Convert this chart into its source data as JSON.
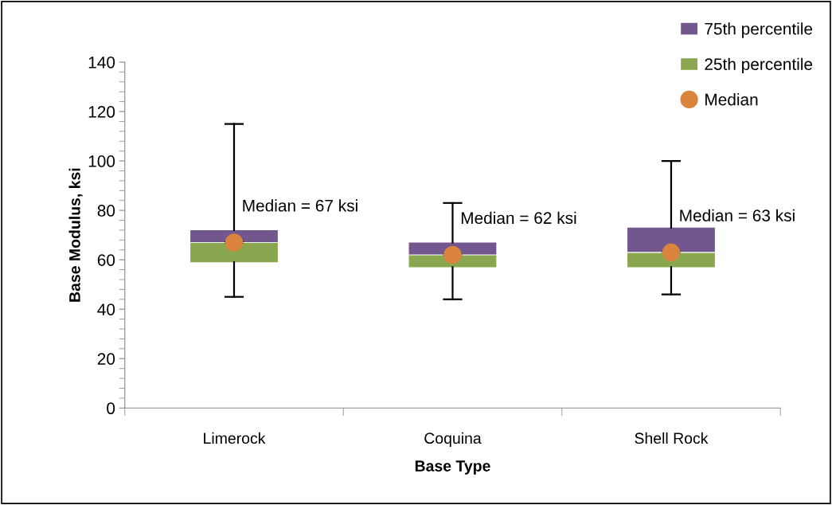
{
  "chart_data": {
    "type": "box",
    "xlabel": "Base Type",
    "ylabel": "Base Modulus, ksi",
    "categories": [
      "Limerock",
      "Coquina",
      "Shell Rock"
    ],
    "series": [
      {
        "name": "75th percentile",
        "color": "#72578f",
        "boxes": [
          {
            "low": 67,
            "q1": 67,
            "median": 67,
            "q3": 72,
            "high": 115
          },
          {
            "low": 62,
            "q1": 62,
            "median": 62,
            "q3": 67,
            "high": 83
          },
          {
            "low": 63,
            "q1": 63,
            "median": 63,
            "q3": 73,
            "high": 100
          }
        ]
      },
      {
        "name": "25th percentile",
        "color": "#8aa64e",
        "boxes": [
          {
            "low": 45,
            "q1": 59,
            "median": 67,
            "q3": 67,
            "high": 67
          },
          {
            "low": 44,
            "q1": 57,
            "median": 62,
            "q3": 62,
            "high": 62
          },
          {
            "low": 46,
            "q1": 57,
            "median": 63,
            "q3": 63,
            "high": 63
          }
        ]
      },
      {
        "name": "Median",
        "type": "scatter",
        "color": "#db843d",
        "x": [
          "Limerock",
          "Coquina",
          "Shell Rock"
        ],
        "values": [
          67,
          62,
          63
        ],
        "marker": "circle"
      }
    ],
    "ylim": [
      0,
      140
    ],
    "yticks": [
      0,
      20,
      40,
      60,
      80,
      100,
      120,
      140
    ],
    "grid": false,
    "legend": "top right",
    "annotations": [
      {
        "text": "Median = 67 ksi",
        "x": "Limerock",
        "y": 67
      },
      {
        "text": "Median = 62 ksi",
        "x": "Coquina",
        "y": 62
      },
      {
        "text": "Median = 63 ksi",
        "x": "Shell Rock",
        "y": 63
      }
    ]
  }
}
